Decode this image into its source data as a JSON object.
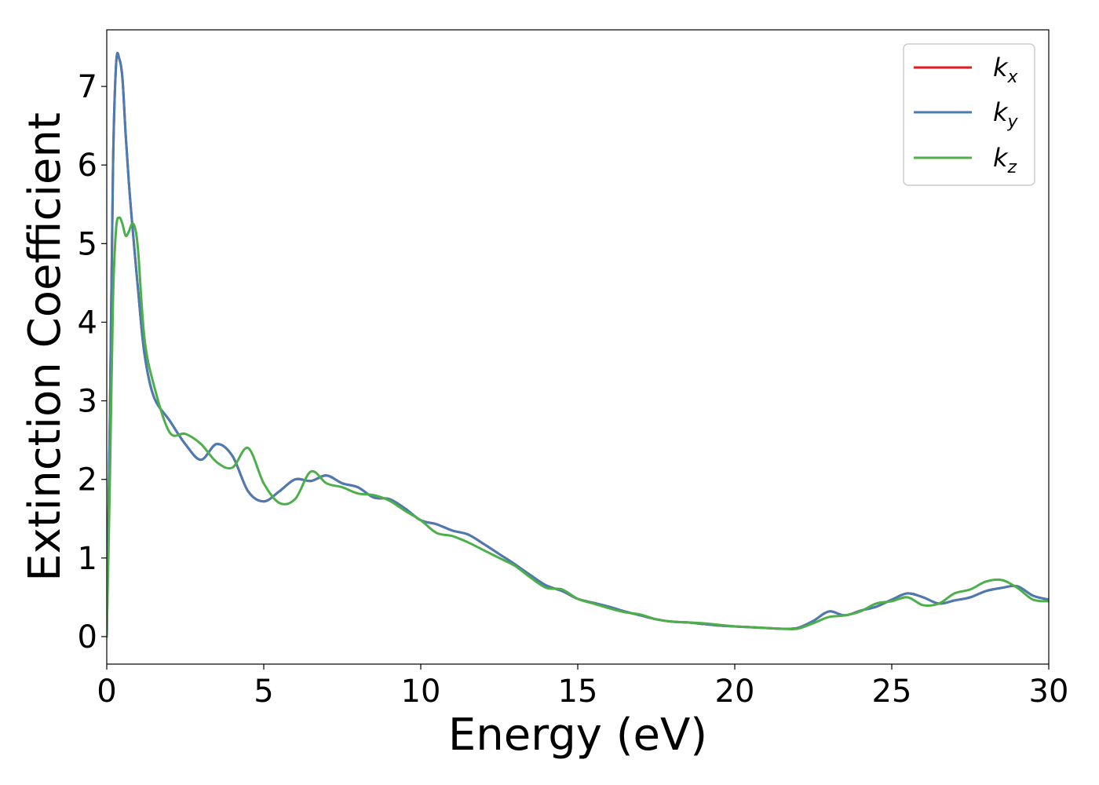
{
  "chart_data": {
    "type": "line",
    "title": "",
    "xlabel": "Energy (eV)",
    "ylabel": "Extinction Coefficient",
    "xlim": [
      0,
      30
    ],
    "ylim": [
      -0.35,
      7.72
    ],
    "xticks": [
      0,
      5,
      10,
      15,
      20,
      25,
      30
    ],
    "yticks": [
      0,
      1,
      2,
      3,
      4,
      5,
      6,
      7
    ],
    "grid": false,
    "legend_position": "upper right",
    "series": [
      {
        "name": "kx",
        "label_main": "k",
        "label_sub": "x",
        "color": "#e41a1c",
        "x": [
          0,
          0.1,
          0.2,
          0.3,
          0.4,
          0.5,
          0.6,
          0.7,
          0.8,
          1.0,
          1.2,
          1.5,
          2.0,
          2.5,
          3.0,
          3.5,
          4.0,
          4.5,
          5.0,
          5.5,
          6.0,
          6.5,
          7.0,
          7.5,
          8.0,
          8.5,
          9.0,
          9.5,
          10.0,
          10.5,
          11.0,
          11.5,
          12.0,
          12.5,
          13.0,
          13.5,
          14.0,
          14.5,
          15.0,
          15.5,
          16.0,
          16.5,
          17.0,
          17.5,
          18.0,
          18.5,
          19.0,
          19.5,
          20.0,
          20.5,
          21.0,
          21.5,
          22.0,
          22.5,
          23.0,
          23.5,
          24.0,
          24.5,
          25.0,
          25.5,
          26.0,
          26.5,
          27.0,
          27.5,
          28.0,
          28.5,
          29.0,
          29.5,
          30.0
        ],
        "y": [
          0.0,
          2.8,
          6.0,
          7.3,
          7.35,
          7.1,
          6.4,
          5.8,
          5.3,
          4.4,
          3.6,
          3.05,
          2.75,
          2.45,
          2.25,
          2.45,
          2.3,
          1.85,
          1.72,
          1.85,
          2.0,
          1.98,
          2.05,
          1.95,
          1.9,
          1.77,
          1.75,
          1.63,
          1.48,
          1.43,
          1.35,
          1.3,
          1.18,
          1.05,
          0.92,
          0.78,
          0.65,
          0.58,
          0.48,
          0.43,
          0.38,
          0.32,
          0.27,
          0.22,
          0.19,
          0.18,
          0.16,
          0.14,
          0.13,
          0.12,
          0.11,
          0.1,
          0.11,
          0.2,
          0.32,
          0.27,
          0.33,
          0.38,
          0.47,
          0.55,
          0.5,
          0.42,
          0.46,
          0.5,
          0.58,
          0.62,
          0.64,
          0.52,
          0.47
        ]
      },
      {
        "name": "ky",
        "label_main": "k",
        "label_sub": "y",
        "color": "#4a7cb3",
        "x": [
          0,
          0.1,
          0.2,
          0.3,
          0.4,
          0.5,
          0.6,
          0.7,
          0.8,
          1.0,
          1.2,
          1.5,
          2.0,
          2.5,
          3.0,
          3.5,
          4.0,
          4.5,
          5.0,
          5.5,
          6.0,
          6.5,
          7.0,
          7.5,
          8.0,
          8.5,
          9.0,
          9.5,
          10.0,
          10.5,
          11.0,
          11.5,
          12.0,
          12.5,
          13.0,
          13.5,
          14.0,
          14.5,
          15.0,
          15.5,
          16.0,
          16.5,
          17.0,
          17.5,
          18.0,
          18.5,
          19.0,
          19.5,
          20.0,
          20.5,
          21.0,
          21.5,
          22.0,
          22.5,
          23.0,
          23.5,
          24.0,
          24.5,
          25.0,
          25.5,
          26.0,
          26.5,
          27.0,
          27.5,
          28.0,
          28.5,
          29.0,
          29.5,
          30.0
        ],
        "y": [
          0.0,
          2.8,
          6.0,
          7.3,
          7.35,
          7.1,
          6.4,
          5.8,
          5.3,
          4.4,
          3.6,
          3.05,
          2.75,
          2.45,
          2.25,
          2.45,
          2.3,
          1.85,
          1.72,
          1.85,
          2.0,
          1.98,
          2.05,
          1.95,
          1.9,
          1.77,
          1.75,
          1.63,
          1.48,
          1.43,
          1.35,
          1.3,
          1.18,
          1.05,
          0.92,
          0.78,
          0.65,
          0.58,
          0.48,
          0.43,
          0.38,
          0.32,
          0.27,
          0.22,
          0.19,
          0.18,
          0.16,
          0.14,
          0.13,
          0.12,
          0.11,
          0.1,
          0.11,
          0.2,
          0.32,
          0.27,
          0.33,
          0.38,
          0.47,
          0.55,
          0.5,
          0.42,
          0.46,
          0.5,
          0.58,
          0.62,
          0.64,
          0.52,
          0.47
        ]
      },
      {
        "name": "kz",
        "label_main": "k",
        "label_sub": "z",
        "color": "#4daf4a",
        "x": [
          0,
          0.1,
          0.2,
          0.3,
          0.4,
          0.5,
          0.6,
          0.7,
          0.8,
          0.9,
          1.0,
          1.2,
          1.5,
          2.0,
          2.5,
          3.0,
          3.5,
          4.0,
          4.5,
          5.0,
          5.5,
          6.0,
          6.5,
          7.0,
          7.5,
          8.0,
          8.5,
          9.0,
          9.5,
          10.0,
          10.5,
          11.0,
          11.5,
          12.0,
          12.5,
          13.0,
          13.5,
          14.0,
          14.5,
          15.0,
          15.5,
          16.0,
          16.5,
          17.0,
          17.5,
          18.0,
          18.5,
          19.0,
          19.5,
          20.0,
          20.5,
          21.0,
          21.5,
          22.0,
          22.5,
          23.0,
          23.5,
          24.0,
          24.5,
          25.0,
          25.5,
          26.0,
          26.5,
          27.0,
          27.5,
          28.0,
          28.5,
          29.0,
          29.5,
          30.0
        ],
        "y": [
          0.0,
          2.0,
          4.3,
          5.2,
          5.33,
          5.25,
          5.1,
          5.15,
          5.25,
          5.2,
          4.9,
          3.8,
          3.2,
          2.6,
          2.58,
          2.45,
          2.22,
          2.15,
          2.4,
          1.95,
          1.7,
          1.75,
          2.1,
          1.95,
          1.9,
          1.82,
          1.8,
          1.73,
          1.6,
          1.48,
          1.32,
          1.28,
          1.2,
          1.1,
          1.0,
          0.9,
          0.75,
          0.62,
          0.6,
          0.48,
          0.42,
          0.36,
          0.31,
          0.28,
          0.22,
          0.19,
          0.18,
          0.17,
          0.15,
          0.13,
          0.12,
          0.11,
          0.1,
          0.1,
          0.17,
          0.25,
          0.27,
          0.32,
          0.42,
          0.45,
          0.5,
          0.4,
          0.42,
          0.55,
          0.6,
          0.7,
          0.72,
          0.62,
          0.47,
          0.45
        ]
      }
    ]
  }
}
